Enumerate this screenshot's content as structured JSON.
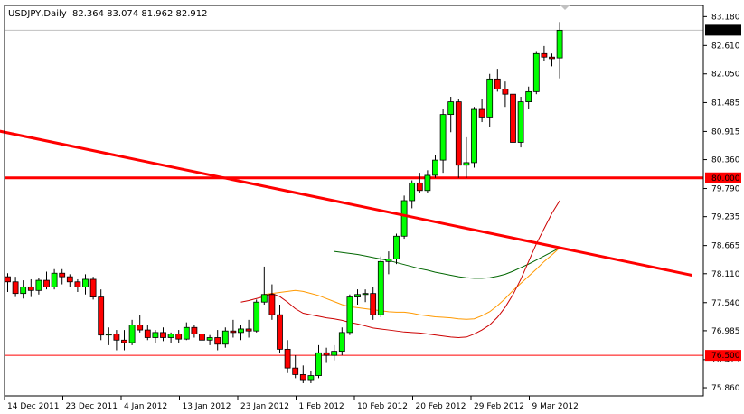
{
  "chart_data": {
    "type": "candlestick",
    "symbol_label": "USDJPY,Daily",
    "ohlc_label": "82.364 83.074 81.962 82.912",
    "y_ticks": [
      "83.180",
      "82.610",
      "82.050",
      "81.485",
      "80.915",
      "80.360",
      "79.790",
      "79.235",
      "78.665",
      "78.110",
      "77.540",
      "76.985",
      "76.415",
      "75.860"
    ],
    "ylim": [
      75.7,
      83.4
    ],
    "x_labels": [
      "14 Dec 2011",
      "23 Dec 2011",
      "4 Jan 2012",
      "13 Jan 2012",
      "23 Jan 2012",
      "1 Feb 2012",
      "10 Feb 2012",
      "20 Feb 2012",
      "29 Feb 2012",
      "9 Mar 2012"
    ],
    "current_price": {
      "value": 82.912,
      "label": "82.912",
      "color": "#000000"
    },
    "horizontal_levels": [
      {
        "value": 80.0,
        "label": "80.000",
        "color": "#ff0000",
        "width": 3
      },
      {
        "value": 76.5,
        "label": "76.500",
        "color": "#ff0000",
        "width": 1
      }
    ],
    "trendline": {
      "color": "#ff0000",
      "start": {
        "bar": -1,
        "value": 80.92
      },
      "end": {
        "bar": 88,
        "value": 78.08
      }
    },
    "colors": {
      "bull": "#00ff00",
      "bear": "#ff0000",
      "wick": "#000000",
      "ma_fast": "#cc0000",
      "ma_mid": "#ff9900",
      "ma_slow": "#006600"
    },
    "candles": [
      [
        78.05,
        78.12,
        77.75,
        77.95
      ],
      [
        77.95,
        78.05,
        77.65,
        77.72
      ],
      [
        77.72,
        77.98,
        77.62,
        77.85
      ],
      [
        77.85,
        78.0,
        77.65,
        77.78
      ],
      [
        77.78,
        78.02,
        77.7,
        77.98
      ],
      [
        77.98,
        78.15,
        77.8,
        77.85
      ],
      [
        77.85,
        78.2,
        77.8,
        78.12
      ],
      [
        78.12,
        78.2,
        77.9,
        78.05
      ],
      [
        78.05,
        78.1,
        77.85,
        77.95
      ],
      [
        77.95,
        78.0,
        77.75,
        77.85
      ],
      [
        77.85,
        78.1,
        77.7,
        78.0
      ],
      [
        78.0,
        78.05,
        77.6,
        77.65
      ],
      [
        77.65,
        77.8,
        76.8,
        76.9
      ],
      [
        76.9,
        77.05,
        76.7,
        76.92
      ],
      [
        76.92,
        77.0,
        76.6,
        76.8
      ],
      [
        76.8,
        77.0,
        76.6,
        76.75
      ],
      [
        76.75,
        77.2,
        76.7,
        77.1
      ],
      [
        77.1,
        77.3,
        76.95,
        77.0
      ],
      [
        77.0,
        77.1,
        76.8,
        76.85
      ],
      [
        76.85,
        77.0,
        76.75,
        76.95
      ],
      [
        76.95,
        77.05,
        76.78,
        76.85
      ],
      [
        76.85,
        76.95,
        76.75,
        76.92
      ],
      [
        76.92,
        77.0,
        76.75,
        76.82
      ],
      [
        76.82,
        77.15,
        76.8,
        77.05
      ],
      [
        77.05,
        77.1,
        76.85,
        76.92
      ],
      [
        76.92,
        77.0,
        76.7,
        76.8
      ],
      [
        76.8,
        76.9,
        76.7,
        76.85
      ],
      [
        76.85,
        77.0,
        76.6,
        76.72
      ],
      [
        76.72,
        77.05,
        76.65,
        76.98
      ],
      [
        76.98,
        77.2,
        76.85,
        76.95
      ],
      [
        76.95,
        77.1,
        76.8,
        77.02
      ],
      [
        77.02,
        77.2,
        76.85,
        76.98
      ],
      [
        76.98,
        77.6,
        76.95,
        77.55
      ],
      [
        77.55,
        78.25,
        77.5,
        77.7
      ],
      [
        77.7,
        77.9,
        77.2,
        77.3
      ],
      [
        77.3,
        77.5,
        76.55,
        76.62
      ],
      [
        76.62,
        76.8,
        76.15,
        76.25
      ],
      [
        76.25,
        76.5,
        76.05,
        76.12
      ],
      [
        76.12,
        76.3,
        75.95,
        76.02
      ],
      [
        76.02,
        76.2,
        75.95,
        76.1
      ],
      [
        76.1,
        76.7,
        76.05,
        76.55
      ],
      [
        76.55,
        76.65,
        76.35,
        76.5
      ],
      [
        76.5,
        76.7,
        76.4,
        76.58
      ],
      [
        76.58,
        77.05,
        76.5,
        76.95
      ],
      [
        76.95,
        77.7,
        76.9,
        77.65
      ],
      [
        77.65,
        77.8,
        77.5,
        77.7
      ],
      [
        77.7,
        77.8,
        77.55,
        77.72
      ],
      [
        77.72,
        77.85,
        77.2,
        77.3
      ],
      [
        77.3,
        78.45,
        77.25,
        78.35
      ],
      [
        78.35,
        78.55,
        78.1,
        78.4
      ],
      [
        78.4,
        78.9,
        78.3,
        78.85
      ],
      [
        78.85,
        79.65,
        78.8,
        79.55
      ],
      [
        79.55,
        79.95,
        79.4,
        79.9
      ],
      [
        79.9,
        80.1,
        79.7,
        79.75
      ],
      [
        79.75,
        80.15,
        79.7,
        80.05
      ],
      [
        80.05,
        80.45,
        80.0,
        80.35
      ],
      [
        80.35,
        81.35,
        80.1,
        81.25
      ],
      [
        81.25,
        81.6,
        80.9,
        81.5
      ],
      [
        81.5,
        81.55,
        80.0,
        80.25
      ],
      [
        80.25,
        80.8,
        80.0,
        80.3
      ],
      [
        80.3,
        81.4,
        80.2,
        81.35
      ],
      [
        81.35,
        81.55,
        81.1,
        81.2
      ],
      [
        81.2,
        82.05,
        81.0,
        81.95
      ],
      [
        81.95,
        82.15,
        81.7,
        81.75
      ],
      [
        81.75,
        81.9,
        81.4,
        81.65
      ],
      [
        81.65,
        81.7,
        80.6,
        80.7
      ],
      [
        80.7,
        81.6,
        80.6,
        81.5
      ],
      [
        81.5,
        81.8,
        81.35,
        81.7
      ],
      [
        81.7,
        82.5,
        81.65,
        82.45
      ],
      [
        82.45,
        82.6,
        82.3,
        82.38
      ],
      [
        82.38,
        82.45,
        82.2,
        82.35
      ],
      [
        82.364,
        83.074,
        81.962,
        82.912
      ]
    ],
    "ma_fast": [
      77.55,
      77.58,
      77.62,
      77.66,
      77.72,
      77.66,
      77.55,
      77.42,
      77.33,
      77.3,
      77.27,
      77.24,
      77.22,
      77.19,
      77.15,
      77.12,
      77.08,
      77.04,
      77.02,
      77.0,
      76.98,
      76.96,
      76.95,
      76.94,
      76.92,
      76.9,
      76.88,
      76.86,
      76.85,
      76.86,
      76.92,
      77.0,
      77.1,
      77.25,
      77.45,
      77.7,
      78.0,
      78.35,
      78.7,
      79.0,
      79.3,
      79.55
    ],
    "ma_mid": [
      77.7,
      77.72,
      77.74,
      77.76,
      77.78,
      77.76,
      77.72,
      77.68,
      77.62,
      77.56,
      77.5,
      77.46,
      77.44,
      77.42,
      77.4,
      77.38,
      77.36,
      77.35,
      77.35,
      77.33,
      77.3,
      77.28,
      77.26,
      77.25,
      77.24,
      77.22,
      77.21,
      77.22,
      77.28,
      77.36,
      77.48,
      77.62,
      77.78,
      77.92,
      78.06,
      78.2,
      78.35,
      78.48,
      78.62
    ],
    "ma_slow": [
      78.55,
      78.53,
      78.51,
      78.49,
      78.46,
      78.43,
      78.4,
      78.37,
      78.33,
      78.29,
      78.25,
      78.21,
      78.18,
      78.14,
      78.11,
      78.08,
      78.05,
      78.03,
      78.02,
      78.02,
      78.03,
      78.06,
      78.1,
      78.16,
      78.23,
      78.3,
      78.38,
      78.46,
      78.54,
      78.62
    ]
  }
}
